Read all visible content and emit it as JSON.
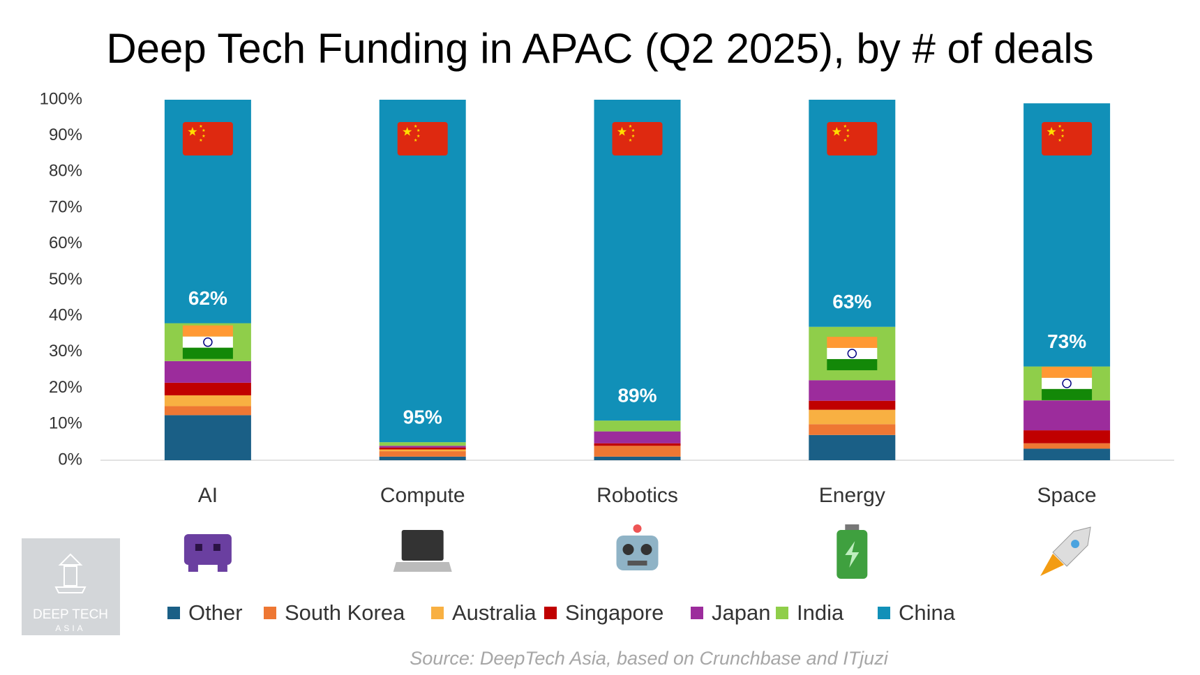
{
  "chart_data": {
    "type": "stacked_bar",
    "title": "Deep Tech Funding in APAC (Q2 2025), by # of deals",
    "categories": [
      "AI",
      "Compute",
      "Robotics",
      "Energy",
      "Space"
    ],
    "series": [
      {
        "name": "Other",
        "color": "#1a5f86",
        "values": [
          12.5,
          1,
          1,
          7,
          3.2
        ]
      },
      {
        "name": "South Korea",
        "color": "#ee7733",
        "values": [
          2.5,
          1.5,
          3,
          3,
          1.5
        ]
      },
      {
        "name": "Australia",
        "color": "#f8b042",
        "values": [
          3,
          0.5,
          0,
          4,
          0
        ]
      },
      {
        "name": "Singapore",
        "color": "#c00000",
        "values": [
          3.5,
          0.5,
          0.7,
          2.5,
          3.6
        ]
      },
      {
        "name": "Japan",
        "color": "#9c2c9c",
        "values": [
          6,
          0.5,
          3.3,
          5.7,
          8.3
        ]
      },
      {
        "name": "India",
        "color": "#8fce4a",
        "values": [
          10.5,
          1,
          3,
          14.8,
          9.4
        ]
      },
      {
        "name": "China",
        "color": "#1190b8",
        "values": [
          62,
          95,
          89,
          63,
          73
        ],
        "value_labels": [
          "62%",
          "95%",
          "89%",
          "63%",
          "73%"
        ]
      }
    ],
    "ylim": [
      0,
      100
    ],
    "yticks": [
      {
        "value": 0,
        "label": "0%"
      },
      {
        "value": 10,
        "label": "10%"
      },
      {
        "value": 20,
        "label": "20%"
      },
      {
        "value": 30,
        "label": "30%"
      },
      {
        "value": 40,
        "label": "40%"
      },
      {
        "value": 50,
        "label": "50%"
      },
      {
        "value": 60,
        "label": "60%"
      },
      {
        "value": 70,
        "label": "70%"
      },
      {
        "value": 80,
        "label": "80%"
      },
      {
        "value": 90,
        "label": "90%"
      },
      {
        "value": 100,
        "label": "100%"
      }
    ],
    "legend": "bottom",
    "source": "Source: DeepTech Asia, based on Crunchbase and ITjuzi",
    "logo": {
      "line1": "DEEP TECH",
      "line2": "ASIA"
    }
  }
}
